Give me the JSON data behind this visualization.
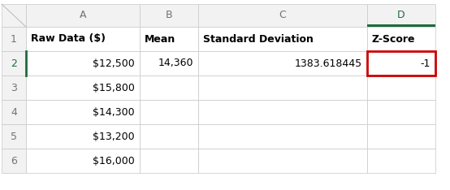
{
  "col_headers": [
    "A",
    "B",
    "C",
    "D"
  ],
  "row_numbers": [
    "1",
    "2",
    "3",
    "4",
    "5",
    "6"
  ],
  "header_row": [
    "Raw Data ($)",
    "Mean",
    "Standard Deviation",
    "Z-Score"
  ],
  "data_rows": [
    [
      "$12,500",
      "14,360",
      "1383.618445",
      "-1"
    ],
    [
      "$15,800",
      "",
      "",
      ""
    ],
    [
      "$14,300",
      "",
      "",
      ""
    ],
    [
      "$13,200",
      "",
      "",
      ""
    ],
    [
      "$16,000",
      "",
      "",
      ""
    ]
  ],
  "bg_color": "#ffffff",
  "grid_color": "#c8c8c8",
  "header_bg": "#f2f2f2",
  "col_header_text_color": "#737373",
  "row_header_text_color": "#737373",
  "cell_text_color": "#000000",
  "header_text_color": "#000000",
  "highlight_border_color": "#cc0000",
  "highlight_col": 3,
  "highlight_row": 1,
  "green_bar_color": "#1e6b3c",
  "selected_col_header_text": "#1e6b3c",
  "row2_number_color": "#1e6b3c"
}
